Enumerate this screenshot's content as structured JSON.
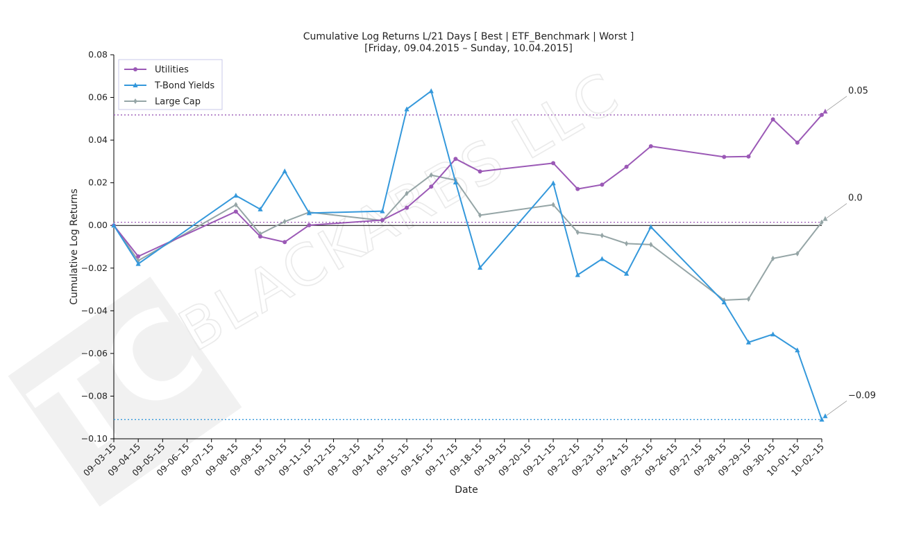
{
  "chart_data": {
    "type": "line",
    "title": "Cumulative Log Returns L/21 Days [ Best | ETF_Benchmark | Worst ]",
    "subtitle": "[Friday, 09.04.2015 – Sunday, 10.04.2015]",
    "xlabel": "Date",
    "ylabel": "Cumulative Log Returns",
    "ylim": [
      -0.1,
      0.08
    ],
    "yticks": [
      0.08,
      0.06,
      0.04,
      0.02,
      0.0,
      -0.02,
      -0.04,
      -0.06,
      -0.08,
      -0.1
    ],
    "ytick_labels": [
      "0.08",
      "0.06",
      "0.04",
      "0.02",
      "0.00",
      "−0.02",
      "−0.04",
      "−0.06",
      "−0.08",
      "−0.10"
    ],
    "x": [
      "09-03-15",
      "09-04-15",
      "09-05-15",
      "09-06-15",
      "09-07-15",
      "09-08-15",
      "09-09-15",
      "09-10-15",
      "09-11-15",
      "09-12-15",
      "09-13-15",
      "09-14-15",
      "09-15-15",
      "09-16-15",
      "09-17-15",
      "09-18-15",
      "09-19-15",
      "09-20-15",
      "09-21-15",
      "09-22-15",
      "09-23-15",
      "09-24-15",
      "09-25-15",
      "09-26-15",
      "09-27-15",
      "09-28-15",
      "09-29-15",
      "09-30-15",
      "10-01-15",
      "10-02-15"
    ],
    "xtick_labels": [
      "09–03–15",
      "09–04–15",
      "09–05–15",
      "09–06–15",
      "09–07–15",
      "09–08–15",
      "09–09–15",
      "09–10–15",
      "09–11–15",
      "09–12–15",
      "09–13–15",
      "09–14–15",
      "09–15–15",
      "09–16–15",
      "09–17–15",
      "09–18–15",
      "09–19–15",
      "09–20–15",
      "09–21–15",
      "09–22–15",
      "09–23–15",
      "09–24–15",
      "09–25–15",
      "09–26–15",
      "09–27–15",
      "09–28–15",
      "09–29–15",
      "09–30–15",
      "10–01–15",
      "10–02–15"
    ],
    "series": [
      {
        "name": "Utilities",
        "color": "#9b59b6",
        "marker": "circle",
        "points": [
          [
            "09-03-15",
            0.0
          ],
          [
            "09-04-15",
            -0.0145
          ],
          [
            "09-08-15",
            0.0065
          ],
          [
            "09-09-15",
            -0.0052
          ],
          [
            "09-10-15",
            -0.0078
          ],
          [
            "09-11-15",
            0.0001
          ],
          [
            "09-14-15",
            0.0025
          ],
          [
            "09-15-15",
            0.0083
          ],
          [
            "09-16-15",
            0.0182
          ],
          [
            "09-17-15",
            0.0312
          ],
          [
            "09-18-15",
            0.0253
          ],
          [
            "09-21-15",
            0.0292
          ],
          [
            "09-22-15",
            0.0171
          ],
          [
            "09-23-15",
            0.0191
          ],
          [
            "09-24-15",
            0.0275
          ],
          [
            "09-25-15",
            0.0371
          ],
          [
            "09-28-15",
            0.0321
          ],
          [
            "09-29-15",
            0.0323
          ],
          [
            "09-30-15",
            0.0497
          ],
          [
            "10-01-15",
            0.0388
          ],
          [
            "10-02-15",
            0.0518
          ]
        ]
      },
      {
        "name": "T-Bond Yields",
        "color": "#3498db",
        "marker": "triangle",
        "points": [
          [
            "09-03-15",
            0.0
          ],
          [
            "09-04-15",
            -0.018
          ],
          [
            "09-08-15",
            0.014
          ],
          [
            "09-09-15",
            0.0076
          ],
          [
            "09-10-15",
            0.0254
          ],
          [
            "09-11-15",
            0.0058
          ],
          [
            "09-14-15",
            0.0067
          ],
          [
            "09-15-15",
            0.0545
          ],
          [
            "09-16-15",
            0.063
          ],
          [
            "09-17-15",
            0.0202
          ],
          [
            "09-18-15",
            -0.0198
          ],
          [
            "09-21-15",
            0.0198
          ],
          [
            "09-22-15",
            -0.0232
          ],
          [
            "09-23-15",
            -0.0157
          ],
          [
            "09-24-15",
            -0.0226
          ],
          [
            "09-25-15",
            -0.0007
          ],
          [
            "09-28-15",
            -0.036
          ],
          [
            "09-29-15",
            -0.0548
          ],
          [
            "09-30-15",
            -0.051
          ],
          [
            "10-01-15",
            -0.0585
          ],
          [
            "10-02-15",
            -0.091
          ]
        ]
      },
      {
        "name": "Large Cap",
        "color": "#95a5a6",
        "marker": "diamond",
        "points": [
          [
            "09-03-15",
            0.0
          ],
          [
            "09-04-15",
            -0.0165
          ],
          [
            "09-08-15",
            0.0097
          ],
          [
            "09-09-15",
            -0.004
          ],
          [
            "09-10-15",
            0.0018
          ],
          [
            "09-11-15",
            0.0062
          ],
          [
            "09-14-15",
            0.0023
          ],
          [
            "09-15-15",
            0.015
          ],
          [
            "09-16-15",
            0.0236
          ],
          [
            "09-17-15",
            0.0212
          ],
          [
            "09-18-15",
            0.0048
          ],
          [
            "09-21-15",
            0.0097
          ],
          [
            "09-22-15",
            -0.0032
          ],
          [
            "09-23-15",
            -0.0047
          ],
          [
            "09-24-15",
            -0.0085
          ],
          [
            "09-25-15",
            -0.009
          ],
          [
            "09-28-15",
            -0.035
          ],
          [
            "09-29-15",
            -0.0345
          ],
          [
            "09-30-15",
            -0.0155
          ],
          [
            "10-01-15",
            -0.0132
          ],
          [
            "10-02-15",
            0.0015
          ]
        ]
      }
    ],
    "reference_lines": [
      {
        "value": 0.0518,
        "color": "#9b59b6",
        "style": "dotted"
      },
      {
        "value": 0.0015,
        "color": "#9b59b6",
        "style": "dotted"
      },
      {
        "value": -0.091,
        "color": "#3498db",
        "style": "dotted"
      },
      {
        "value": 0.0,
        "color": "#000000",
        "style": "solid"
      }
    ],
    "annotations": [
      {
        "text": "0.05",
        "value": 0.0518,
        "color": "#9b59b6"
      },
      {
        "text": "0.0",
        "value": 0.0015,
        "color": "#95a5a6"
      },
      {
        "text": "−0.09",
        "value": -0.091,
        "color": "#3498db"
      }
    ],
    "legend": {
      "position": "top-left"
    },
    "grid": false
  },
  "watermark": {
    "text": "BLACKARBS LLC",
    "logo_text": "TC"
  }
}
